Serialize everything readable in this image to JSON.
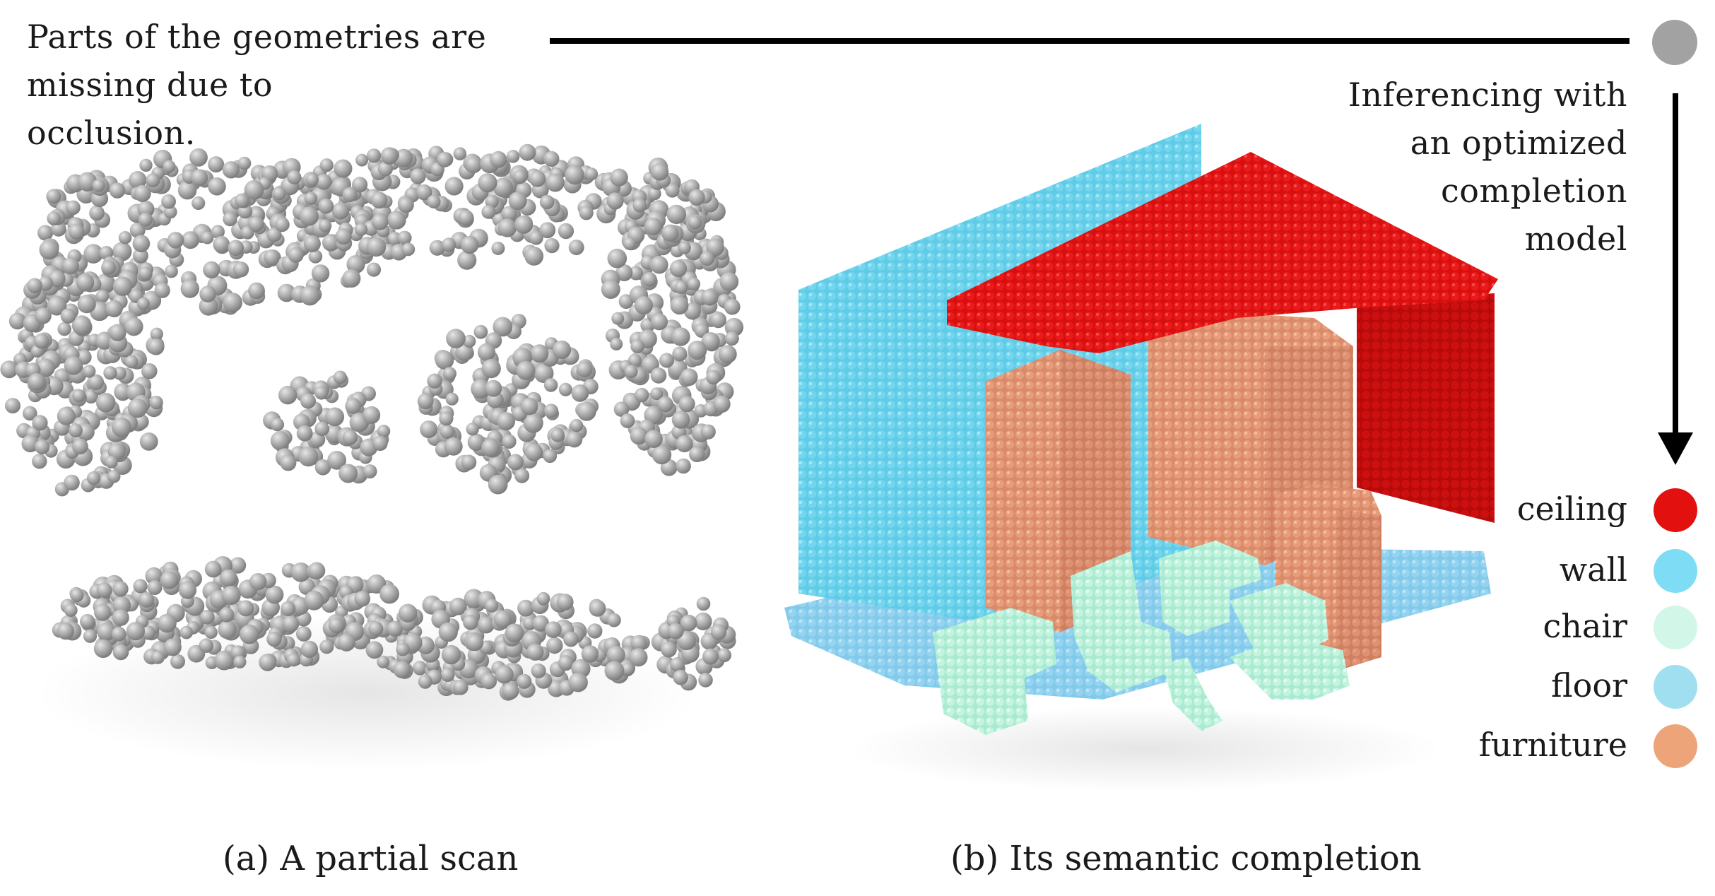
{
  "annotation": {
    "lines": [
      "Parts of the geometries are",
      "missing due to",
      "occlusion."
    ]
  },
  "inference": {
    "lines": [
      "Inferencing with",
      "an optimized",
      "completion",
      "model"
    ]
  },
  "legend": [
    {
      "label": "ceiling",
      "color": "#e31010"
    },
    {
      "label": "wall",
      "color": "#7fdcf5"
    },
    {
      "label": "chair",
      "color": "#d2f7e8"
    },
    {
      "label": "floor",
      "color": "#9fdff0"
    },
    {
      "label": "furniture",
      "color": "#eda479"
    }
  ],
  "captions": {
    "a": "(a) A partial scan",
    "b": "(b) Its semantic completion"
  },
  "colors": {
    "scan_point": "#a8a8a8",
    "state_dot": "#a2a2a2",
    "wall": "#63cfe9",
    "ceiling": "#e81414",
    "furniture": "#e59a78",
    "chair": "#bff2dc",
    "floor": "#8fd2ef"
  }
}
